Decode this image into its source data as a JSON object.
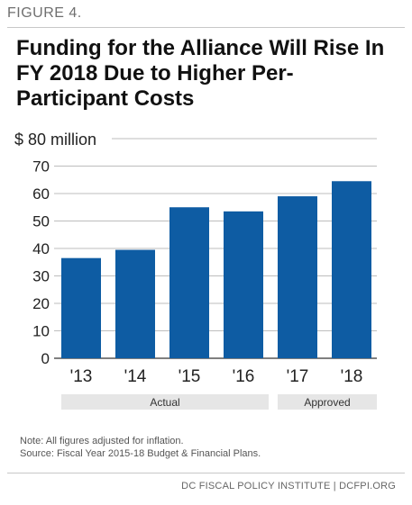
{
  "figure_label": "FIGURE 4.",
  "chart_data": {
    "type": "bar",
    "title": "Funding for the Alliance Will Rise In FY 2018 Due to Higher Per-Participant Costs",
    "ylabel": "$ 80 million",
    "categories": [
      "'13",
      "'14",
      "'15",
      "'16",
      "'17",
      "'18"
    ],
    "values": [
      36.5,
      39.5,
      55,
      53.5,
      59,
      64.5
    ],
    "ylim": [
      0,
      80
    ],
    "yticks": [
      "0",
      "10",
      "20",
      "30",
      "40",
      "50",
      "60",
      "70"
    ],
    "grid": true,
    "bar_color": "#0e5ca3",
    "groups": [
      {
        "label": "Actual",
        "from": 0,
        "to": 3
      },
      {
        "label": "Approved",
        "from": 4,
        "to": 5
      }
    ]
  },
  "notes": {
    "note": "Note: All figures adjusted for inflation.",
    "source": "Source: Fiscal Year 2015-18 Budget & Financial Plans."
  },
  "footer": "DC FISCAL POLICY INSTITUTE | DCFPI.ORG"
}
